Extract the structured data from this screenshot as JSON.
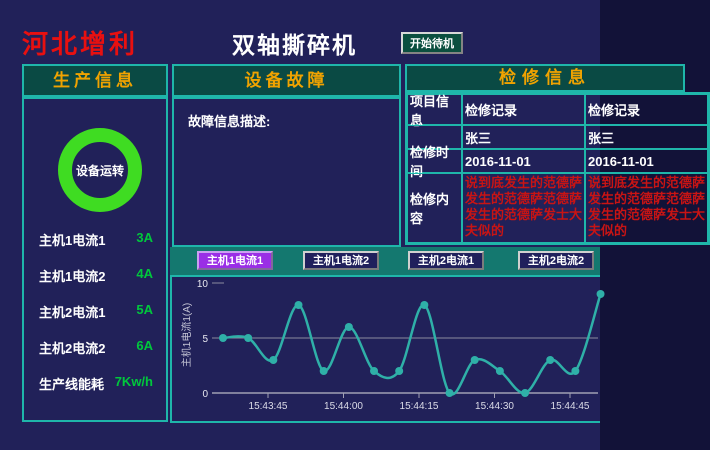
{
  "colors": {
    "background": "#212159",
    "panel_teal": "#0a4a44",
    "border_cyan": "#1fb6aa",
    "strip_teal": "#14786f",
    "accent_orange": "#f0a300",
    "brand_red": "#e81010",
    "value_green": "#00c83c",
    "ring_green": "#3fdc22",
    "selected_purple": "#9a2ee6",
    "alarm_text_red": "#c81414",
    "line_teal": "#2fb0a8"
  },
  "header": {
    "company": "河北增利",
    "machine_title": "双轴撕碎机",
    "standby_button": "开始待机"
  },
  "production": {
    "title": "生产信息",
    "status_label": "设备运转",
    "rows": [
      {
        "label": "主机1电流1",
        "value": "3A"
      },
      {
        "label": "主机1电流2",
        "value": "4A"
      },
      {
        "label": "主机2电流1",
        "value": "5A"
      },
      {
        "label": "主机2电流2",
        "value": "6A"
      },
      {
        "label": "生产线能耗",
        "value": "7Kw/h"
      }
    ]
  },
  "fault": {
    "title": "设备故障",
    "description_label": "故障信息描述:"
  },
  "maintenance": {
    "title": "检修信息",
    "row_labels": {
      "project": "项目信息",
      "time": "检修时间",
      "content": "检修内容"
    },
    "records": [
      {
        "header": "检修记录",
        "operator": "张三",
        "time": "2016-11-01",
        "content": "说到底发生的范德萨发生的范德萨范德萨发生的范德萨发士大夫似的"
      },
      {
        "header": "检修记录",
        "operator": "张三",
        "time": "2016-11-01",
        "content": "说到底发生的范德萨发生的范德萨范德萨发生的范德萨发士大夫似的"
      }
    ]
  },
  "trend": {
    "buttons": [
      {
        "label": "主机1电流1",
        "selected": true
      },
      {
        "label": "主机1电流2",
        "selected": false
      },
      {
        "label": "主机2电流1",
        "selected": false
      },
      {
        "label": "主机2电流2",
        "selected": false
      }
    ]
  },
  "chart_data": {
    "type": "line",
    "title": "",
    "xlabel": "",
    "ylabel": "主机1电流1(A)",
    "ylim": [
      0,
      10
    ],
    "yticks": [
      0,
      5,
      10
    ],
    "grid": "horizontal line at y=5, baseline at y=0",
    "legend": "none",
    "x_tick_labels": [
      "15:43:45",
      "15:44:00",
      "15:44:15",
      "15:44:30",
      "15:44:45"
    ],
    "x": [
      "15:43:35",
      "15:43:40",
      "15:43:45",
      "15:43:50",
      "15:43:55",
      "15:44:00",
      "15:44:05",
      "15:44:10",
      "15:44:15",
      "15:44:20",
      "15:44:25",
      "15:44:30",
      "15:44:35",
      "15:44:40",
      "15:44:45",
      "15:44:50"
    ],
    "series": [
      {
        "name": "主机1电流1",
        "values": [
          5,
          5,
          3,
          8,
          2,
          6,
          2,
          2,
          8,
          0,
          3,
          2,
          0,
          3,
          2,
          9
        ]
      }
    ]
  }
}
